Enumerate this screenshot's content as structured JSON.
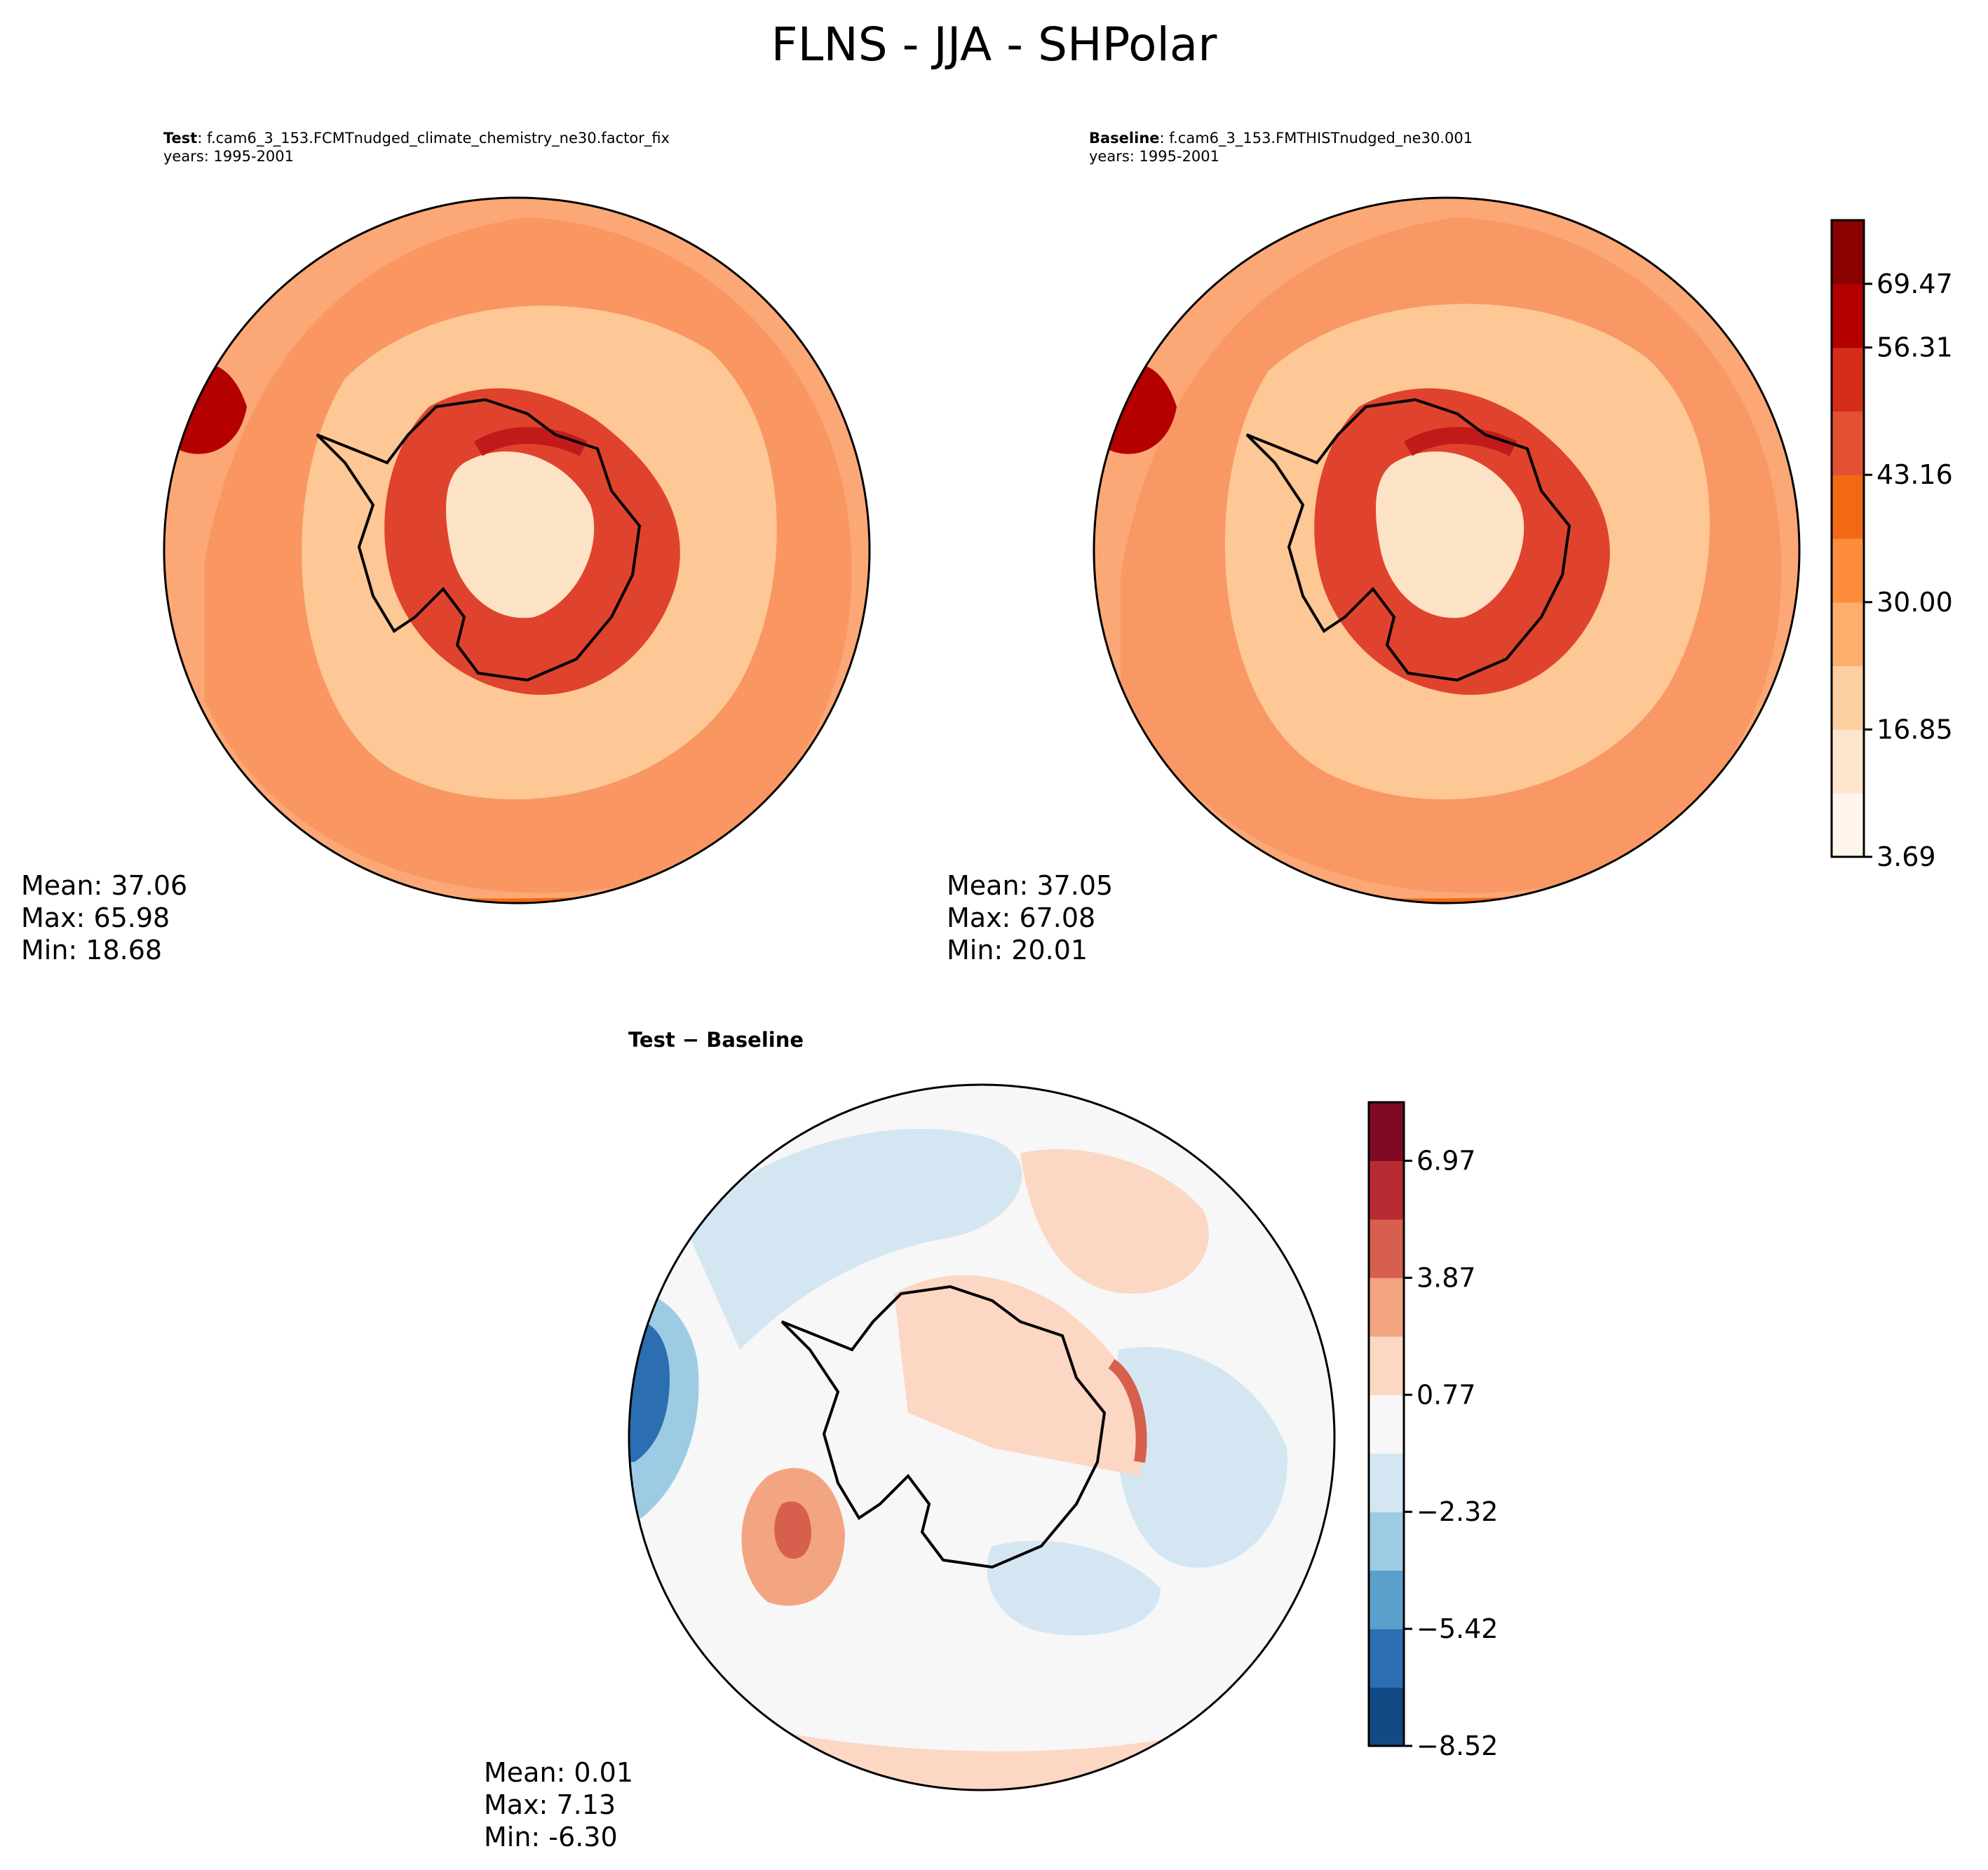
{
  "title": "FLNS - JJA - SHPolar",
  "panels": {
    "test": {
      "label_bold": "Test",
      "label_rest": ": f.cam6_3_153.FCMTnudged_climate_chemistry_ne30.factor_fix",
      "years": "years: 1995-2001",
      "stats": {
        "mean": "Mean: 37.06",
        "max": "Max: 65.98",
        "min": "Min: 18.68"
      }
    },
    "baseline": {
      "label_bold": "Baseline",
      "label_rest": ": f.cam6_3_153.FMTHISTnudged_ne30.001",
      "years": "years: 1995-2001",
      "stats": {
        "mean": "Mean: 37.05",
        "max": "Max: 67.08",
        "min": "Min: 20.01"
      }
    },
    "diff": {
      "label": "Test − Baseline",
      "stats": {
        "mean": "Mean:  0.01",
        "max": "Max:  7.13",
        "min": "Min: -6.30"
      }
    }
  },
  "colorbars": {
    "main": {
      "ticks": [
        "3.69",
        "16.85",
        "30.00",
        "43.16",
        "56.31",
        "69.47"
      ],
      "colors": [
        "#fff5eb",
        "#fee6ce",
        "#fdd0a2",
        "#fdae6b",
        "#fd8d3c",
        "#f16913",
        "#e35032",
        "#d42d1a",
        "#b50000",
        "#8b0000"
      ]
    },
    "diff": {
      "ticks": [
        "−8.52",
        "−5.42",
        "−2.32",
        "0.77",
        "3.87",
        "6.97"
      ],
      "colors": [
        "#114a85",
        "#2b6eb1",
        "#5aa0cc",
        "#9dcbe3",
        "#d4e6f2",
        "#f7f7f7",
        "#fbd7c4",
        "#f3a582",
        "#d6604d",
        "#b72b33",
        "#800a24"
      ]
    }
  },
  "map_colors": {
    "ocean_main": "#fba876",
    "ocean_light": "#fdc896",
    "ocean_mid": "#f88a55",
    "land_hot": "#e0432d",
    "land_hotter": "#c21a1a",
    "land_cool": "#fde3c6",
    "diff_bg": "#f7f7f7",
    "diff_blue": "#d4e6f2",
    "diff_blue2": "#9dcbe3",
    "diff_blue3": "#2b6eb1",
    "diff_red": "#fbd7c4",
    "diff_red2": "#f3a582",
    "diff_red3": "#d6604d"
  }
}
